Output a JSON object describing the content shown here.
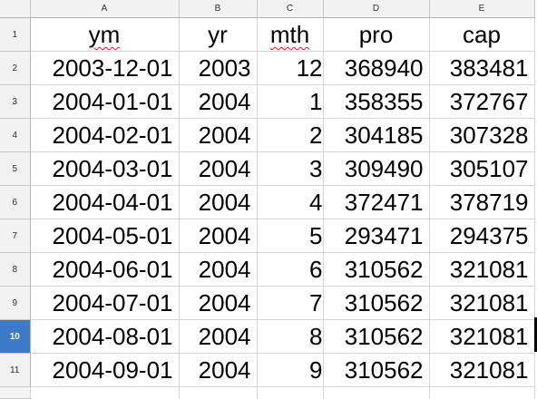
{
  "columns": [
    "A",
    "B",
    "C",
    "D",
    "E"
  ],
  "rows": [
    {
      "num": "1",
      "cells": [
        "ym",
        "yr",
        "mth",
        "pro",
        "cap"
      ]
    },
    {
      "num": "2",
      "cells": [
        "2003-12-01",
        "2003",
        "12",
        "368940",
        "383481"
      ]
    },
    {
      "num": "3",
      "cells": [
        "2004-01-01",
        "2004",
        "1",
        "358355",
        "372767"
      ]
    },
    {
      "num": "4",
      "cells": [
        "2004-02-01",
        "2004",
        "2",
        "304185",
        "307328"
      ]
    },
    {
      "num": "5",
      "cells": [
        "2004-03-01",
        "2004",
        "3",
        "309490",
        "305107"
      ]
    },
    {
      "num": "6",
      "cells": [
        "2004-04-01",
        "2004",
        "4",
        "372471",
        "378719"
      ]
    },
    {
      "num": "7",
      "cells": [
        "2004-05-01",
        "2004",
        "5",
        "293471",
        "294375"
      ]
    },
    {
      "num": "8",
      "cells": [
        "2004-06-01",
        "2004",
        "6",
        "310562",
        "321081"
      ]
    },
    {
      "num": "9",
      "cells": [
        "2004-07-01",
        "2004",
        "7",
        "310562",
        "321081"
      ]
    },
    {
      "num": "10",
      "cells": [
        "2004-08-01",
        "2004",
        "8",
        "310562",
        "321081"
      ]
    },
    {
      "num": "11",
      "cells": [
        "2004-09-01",
        "2004",
        "9",
        "310562",
        "321081"
      ]
    }
  ],
  "selected_row": "10",
  "colors": {
    "header_bg": "#f2f2f2",
    "selected_header_bg": "#3c79c7",
    "grid": "#d4d4d4",
    "spellcheck": "#e02020"
  }
}
